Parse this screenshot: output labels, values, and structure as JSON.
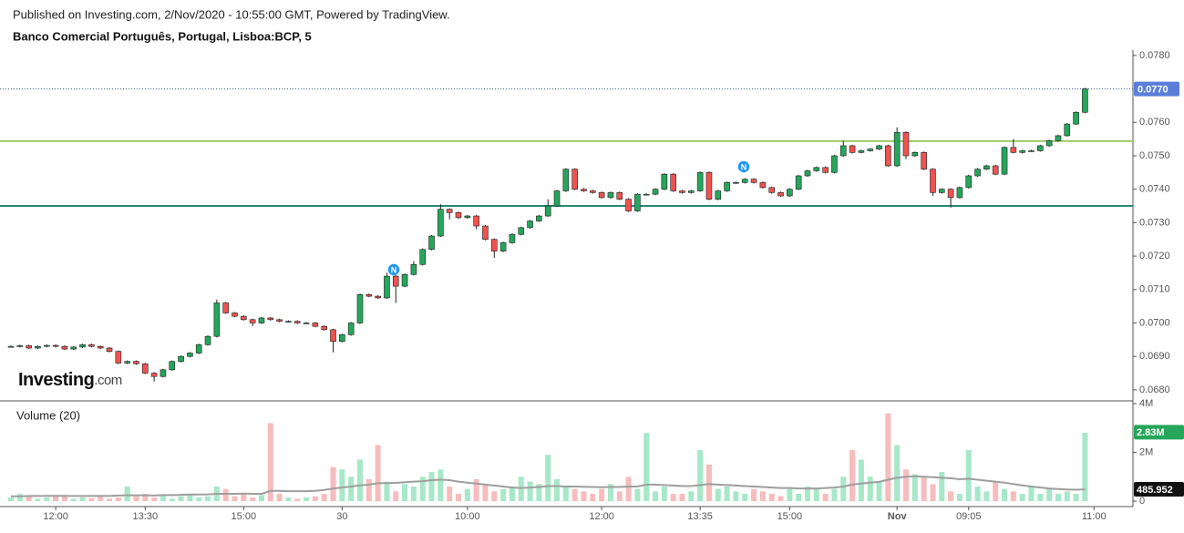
{
  "header": {
    "published": "Published on Investing.com, 2/Nov/2020 - 10:55:00 GMT, Powered by TradingView.",
    "title": "Banco Comercial Português, Portugal, Lisboa:BCP, 5"
  },
  "logo": {
    "name": "Investing",
    "suffix": ".com"
  },
  "news_markers": [
    "N",
    "N"
  ],
  "chart_data": {
    "type": "candlestick",
    "categories": [
      null,
      null,
      null,
      null,
      null,
      "12:00",
      null,
      null,
      null,
      null,
      null,
      null,
      null,
      null,
      null,
      "13:30",
      null,
      null,
      null,
      null,
      null,
      null,
      null,
      null,
      null,
      null,
      "15:00",
      null,
      null,
      null,
      null,
      null,
      null,
      null,
      null,
      null,
      null,
      "30",
      null,
      null,
      null,
      null,
      null,
      null,
      null,
      null,
      null,
      null,
      null,
      null,
      null,
      "10:00",
      null,
      null,
      null,
      null,
      null,
      null,
      null,
      null,
      null,
      null,
      null,
      null,
      null,
      null,
      "12:00",
      null,
      null,
      null,
      null,
      null,
      null,
      null,
      null,
      null,
      null,
      "13:35",
      null,
      null,
      null,
      null,
      null,
      null,
      null,
      null,
      null,
      "15:00",
      null,
      null,
      null,
      null,
      null,
      null,
      null,
      null,
      null,
      null,
      null,
      "Nov",
      null,
      null,
      null,
      null,
      null,
      null,
      null,
      "09:05",
      null,
      null,
      null,
      null,
      null,
      null,
      null,
      null,
      null,
      null,
      null,
      null,
      null,
      "11:00"
    ],
    "open": [
      0.0693,
      0.0693,
      0.06932,
      0.06925,
      0.0693,
      0.06933,
      0.0693,
      0.06922,
      0.06928,
      0.06935,
      0.0693,
      0.06925,
      0.06915,
      0.0688,
      0.06885,
      0.06878,
      0.0685,
      0.0684,
      0.0686,
      0.06885,
      0.069,
      0.0691,
      0.06935,
      0.0696,
      0.0706,
      0.0703,
      0.0702,
      0.0701,
      0.07,
      0.07015,
      0.0701,
      0.07005,
      0.07005,
      0.07,
      0.07,
      0.0699,
      0.0698,
      0.06945,
      0.06965,
      0.07,
      0.07085,
      0.0708,
      0.07075,
      0.0714,
      0.0711,
      0.07145,
      0.07175,
      0.0722,
      0.0726,
      0.0734,
      0.0733,
      0.07315,
      0.0732,
      0.0729,
      0.0725,
      0.07215,
      0.0724,
      0.07265,
      0.07285,
      0.07305,
      0.0732,
      0.0735,
      0.07395,
      0.0746,
      0.074,
      0.07395,
      0.0739,
      0.07375,
      0.0739,
      0.0737,
      0.07335,
      0.07385,
      0.07385,
      0.074,
      0.07445,
      0.07395,
      0.0739,
      0.07395,
      0.0745,
      0.0737,
      0.07395,
      0.0742,
      0.0742,
      0.0743,
      0.0742,
      0.07405,
      0.0739,
      0.0738,
      0.074,
      0.0744,
      0.07455,
      0.07465,
      0.0745,
      0.075,
      0.0753,
      0.0751,
      0.07515,
      0.0752,
      0.0753,
      0.0747,
      0.0757,
      0.075,
      0.0751,
      0.0746,
      0.0739,
      0.074,
      0.07375,
      0.07405,
      0.0744,
      0.0746,
      0.0747,
      0.07445,
      0.07525,
      0.0751,
      0.07515,
      0.07515,
      0.0753,
      0.07545,
      0.0756,
      0.07595,
      0.0763,
      null
    ],
    "high": [
      0.06933,
      0.06935,
      0.06935,
      0.06933,
      0.06936,
      0.06936,
      0.06933,
      0.06931,
      0.06938,
      0.06938,
      0.06933,
      0.06928,
      0.06918,
      0.06888,
      0.06888,
      0.06881,
      0.06853,
      0.06863,
      0.06888,
      0.06903,
      0.06913,
      0.06938,
      0.06963,
      0.0707,
      0.07063,
      0.07033,
      0.07023,
      0.07013,
      0.07018,
      0.07018,
      0.07013,
      0.07008,
      0.07008,
      0.07003,
      0.07003,
      0.06993,
      0.06983,
      0.06968,
      0.07003,
      0.07088,
      0.07088,
      0.07083,
      0.0715,
      0.07143,
      0.07148,
      0.07185,
      0.07223,
      0.07263,
      0.07355,
      0.07343,
      0.07333,
      0.07323,
      0.07323,
      0.07293,
      0.07253,
      0.07243,
      0.07268,
      0.07288,
      0.07308,
      0.07323,
      0.0737,
      0.07398,
      0.07463,
      0.07463,
      0.07403,
      0.07398,
      0.07393,
      0.07393,
      0.07393,
      0.07373,
      0.07388,
      0.07388,
      0.07403,
      0.07448,
      0.07448,
      0.07398,
      0.07398,
      0.07453,
      0.07453,
      0.07398,
      0.07423,
      0.07423,
      0.07433,
      0.07433,
      0.07423,
      0.07408,
      0.07393,
      0.07403,
      0.07443,
      0.07458,
      0.07468,
      0.07468,
      0.07503,
      0.07545,
      0.07533,
      0.07518,
      0.07523,
      0.07533,
      0.07533,
      0.07585,
      0.07573,
      0.07513,
      0.07513,
      0.07463,
      0.07403,
      0.07403,
      0.07408,
      0.07443,
      0.07463,
      0.07473,
      0.07473,
      0.07528,
      0.0755,
      0.07518,
      0.07518,
      0.07533,
      0.07548,
      0.07563,
      0.07598,
      0.07633,
      0.07703,
      null
    ],
    "low": [
      0.06927,
      0.06927,
      0.06922,
      0.06922,
      0.06927,
      0.06927,
      0.06919,
      0.06919,
      0.06925,
      0.06927,
      0.06922,
      0.06912,
      0.06877,
      0.06877,
      0.06875,
      0.06847,
      0.06825,
      0.06837,
      0.06857,
      0.06882,
      0.06897,
      0.06907,
      0.06932,
      0.06957,
      0.07027,
      0.07017,
      0.07007,
      0.0699,
      0.06997,
      0.07007,
      0.07002,
      0.07002,
      0.06997,
      0.06997,
      0.06987,
      0.06977,
      0.06912,
      0.06942,
      0.06962,
      0.06997,
      0.07077,
      0.07072,
      0.07072,
      0.0706,
      0.07107,
      0.07142,
      0.07172,
      0.07217,
      0.07257,
      0.0731,
      0.07312,
      0.07312,
      0.0728,
      0.07247,
      0.07195,
      0.07212,
      0.07237,
      0.07262,
      0.07282,
      0.07302,
      0.07317,
      0.07347,
      0.07392,
      0.07397,
      0.07392,
      0.07387,
      0.07372,
      0.07372,
      0.07367,
      0.07332,
      0.07332,
      0.07382,
      0.07382,
      0.07397,
      0.07392,
      0.07387,
      0.07387,
      0.07392,
      0.07367,
      0.07367,
      0.07392,
      0.07417,
      0.07417,
      0.07417,
      0.07402,
      0.07387,
      0.07377,
      0.07377,
      0.07397,
      0.07437,
      0.07452,
      0.07447,
      0.07447,
      0.07497,
      0.07507,
      0.07507,
      0.07512,
      0.07517,
      0.07467,
      0.07467,
      0.0749,
      0.07497,
      0.07457,
      0.0738,
      0.07387,
      0.07345,
      0.07372,
      0.07402,
      0.07437,
      0.07457,
      0.07442,
      0.07442,
      0.07507,
      0.07507,
      0.07512,
      0.07512,
      0.07527,
      0.07542,
      0.07557,
      0.07592,
      0.07627,
      null
    ],
    "close": [
      0.0693,
      0.06932,
      0.06925,
      0.0693,
      0.06933,
      0.0693,
      0.06922,
      0.06928,
      0.06935,
      0.0693,
      0.06925,
      0.06915,
      0.0688,
      0.06885,
      0.06878,
      0.0685,
      0.0684,
      0.0686,
      0.06885,
      0.069,
      0.0691,
      0.06935,
      0.0696,
      0.0706,
      0.0703,
      0.0702,
      0.0701,
      0.07,
      0.07015,
      0.0701,
      0.07005,
      0.07005,
      0.07,
      0.07,
      0.0699,
      0.0698,
      0.06945,
      0.06965,
      0.07,
      0.07085,
      0.0708,
      0.07075,
      0.0714,
      0.0711,
      0.07145,
      0.07175,
      0.0722,
      0.0726,
      0.0734,
      0.0733,
      0.07315,
      0.0732,
      0.0729,
      0.0725,
      0.07215,
      0.0724,
      0.07265,
      0.07285,
      0.07305,
      0.0732,
      0.0735,
      0.07395,
      0.0746,
      0.074,
      0.07395,
      0.0739,
      0.07375,
      0.0739,
      0.0737,
      0.07335,
      0.07385,
      0.07385,
      0.074,
      0.07445,
      0.07395,
      0.0739,
      0.07395,
      0.0745,
      0.0737,
      0.07395,
      0.0742,
      0.0742,
      0.0743,
      0.0742,
      0.07405,
      0.0739,
      0.0738,
      0.074,
      0.0744,
      0.07455,
      0.07465,
      0.0745,
      0.075,
      0.0753,
      0.0751,
      0.07515,
      0.0752,
      0.0753,
      0.0747,
      0.0757,
      0.075,
      0.0751,
      0.0746,
      0.0739,
      0.074,
      0.07375,
      0.07405,
      0.0744,
      0.0746,
      0.0747,
      0.07445,
      0.07525,
      0.0751,
      0.07515,
      0.07515,
      0.0753,
      0.07545,
      0.0756,
      0.07595,
      0.0763,
      0.077,
      null
    ],
    "up_color": "#26a65b",
    "down_color": "#ef5350",
    "ylim": [
      0.06767,
      0.07816
    ],
    "yticks": [
      {
        "value": 0.068,
        "label": "0.0680"
      },
      {
        "value": 0.069,
        "label": "0.0690"
      },
      {
        "value": 0.07,
        "label": "0.0700"
      },
      {
        "value": 0.071,
        "label": "0.0710"
      },
      {
        "value": 0.072,
        "label": "0.0720"
      },
      {
        "value": 0.073,
        "label": "0.0730"
      },
      {
        "value": 0.074,
        "label": "0.0740"
      },
      {
        "value": 0.075,
        "label": "0.0750"
      },
      {
        "value": 0.076,
        "label": "0.0760"
      },
      {
        "value": 0.078,
        "label": "0.0780"
      }
    ],
    "levels": [
      {
        "value": 0.07544,
        "color": "#9ccc65"
      },
      {
        "value": 0.0735,
        "color": "#26897a"
      }
    ],
    "last_price": {
      "value": 0.077,
      "label": "0.0770",
      "color": "#5b7fd9"
    },
    "volume": {
      "title": "Volume (20)",
      "values": [
        150000,
        300000,
        200000,
        100000,
        150000,
        250000,
        200000,
        100000,
        150000,
        120000,
        200000,
        100000,
        150000,
        600000,
        200000,
        300000,
        150000,
        250000,
        100000,
        200000,
        300000,
        150000,
        200000,
        600000,
        500000,
        200000,
        300000,
        150000,
        250000,
        3200000,
        300000,
        150000,
        100000,
        150000,
        200000,
        300000,
        1400000,
        1300000,
        1000000,
        1700000,
        900000,
        2300000,
        800000,
        400000,
        700000,
        600000,
        1000000,
        1200000,
        1300000,
        600000,
        300000,
        500000,
        900000,
        700000,
        400000,
        500000,
        600000,
        1000000,
        800000,
        700000,
        1900000,
        900000,
        600000,
        500000,
        400000,
        300000,
        500000,
        700000,
        400000,
        1000000,
        500000,
        2800000,
        400000,
        600000,
        300000,
        300000,
        400000,
        2100000,
        1500000,
        500000,
        600000,
        400000,
        300000,
        500000,
        400000,
        300000,
        200000,
        500000,
        300000,
        600000,
        500000,
        300000,
        500000,
        1000000,
        2100000,
        1700000,
        1000000,
        800000,
        3600000,
        2300000,
        1300000,
        1100000,
        1000000,
        700000,
        1200000,
        400000,
        300000,
        2100000,
        600000,
        400000,
        800000,
        500000,
        400000,
        300000,
        600000,
        300000,
        500000,
        300000,
        400000,
        300000,
        2800000,
        null
      ],
      "up_color": "#a6e8c7",
      "down_color": "#f7bcbc",
      "ylim": [
        -110000,
        4075000
      ],
      "yticks": [
        0,
        {
          "value": 2000000,
          "label": "2M"
        },
        {
          "value": 4000000,
          "label": "4M"
        }
      ],
      "ma": {
        "color": "#9e9e9e",
        "values": [
          200000,
          200000,
          210000,
          210000,
          220000,
          220000,
          220000,
          210000,
          210000,
          210000,
          220000,
          210000,
          230000,
          240000,
          240000,
          240000,
          230000,
          250000,
          250000,
          260000,
          270000,
          270000,
          280000,
          300000,
          300000,
          300000,
          310000,
          300000,
          300000,
          420000,
          420000,
          410000,
          410000,
          410000,
          420000,
          460000,
          520000,
          560000,
          600000,
          650000,
          680000,
          740000,
          740000,
          750000,
          780000,
          800000,
          820000,
          860000,
          880000,
          860000,
          800000,
          760000,
          720000,
          680000,
          640000,
          600000,
          560000,
          540000,
          560000,
          580000,
          620000,
          620000,
          600000,
          600000,
          590000,
          580000,
          570000,
          580000,
          580000,
          600000,
          600000,
          680000,
          680000,
          660000,
          640000,
          620000,
          620000,
          660000,
          700000,
          680000,
          660000,
          640000,
          620000,
          600000,
          580000,
          560000,
          540000,
          540000,
          520000,
          520000,
          520000,
          540000,
          560000,
          600000,
          680000,
          720000,
          760000,
          790000,
          880000,
          960000,
          1000000,
          1020000,
          1000000,
          980000,
          960000,
          940000,
          900000,
          920000,
          880000,
          840000,
          800000,
          760000,
          700000,
          650000,
          600000,
          560000,
          520000,
          500000,
          480000,
          470000,
          485952,
          null
        ]
      },
      "last_volume": {
        "value": 2830000,
        "label": "2.83M",
        "color": "#26a65b"
      },
      "last_ma": {
        "value": 485952,
        "label": "485.952",
        "color": "#111111"
      }
    }
  }
}
